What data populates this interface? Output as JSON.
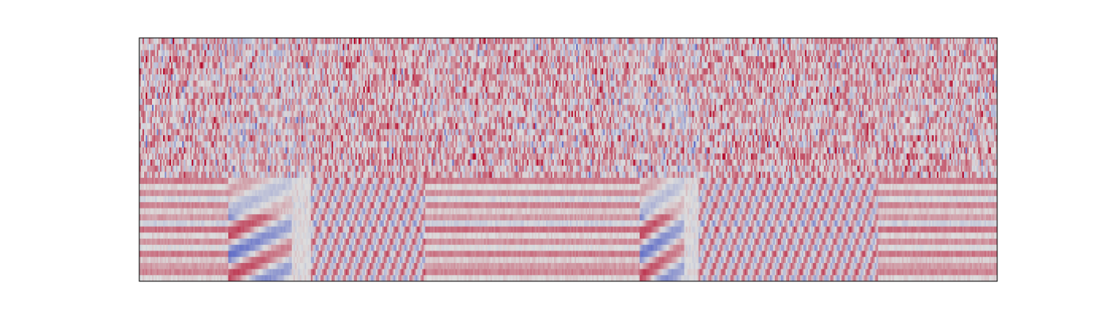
{
  "chart_data": {
    "type": "heatmap",
    "colormap": "coolwarm",
    "colormap_colors": [
      "#3b4cc0",
      "#dddddd",
      "#b40426"
    ],
    "grid": false,
    "axes_visible": false,
    "axes_frame": true,
    "value_range": [
      -1,
      1
    ],
    "n_columns": 540,
    "n_rows": 40,
    "segments": [
      {
        "start_col": 0,
        "end_col": 56,
        "pattern": "stripes"
      },
      {
        "start_col": 56,
        "end_col": 108,
        "pattern": "onset"
      },
      {
        "start_col": 108,
        "end_col": 180,
        "pattern": "oscillating"
      },
      {
        "start_col": 180,
        "end_col": 315,
        "pattern": "stripes"
      },
      {
        "start_col": 315,
        "end_col": 352,
        "pattern": "onset"
      },
      {
        "start_col": 352,
        "end_col": 465,
        "pattern": "oscillating"
      },
      {
        "start_col": 465,
        "end_col": 540,
        "pattern": "stripes"
      }
    ]
  }
}
